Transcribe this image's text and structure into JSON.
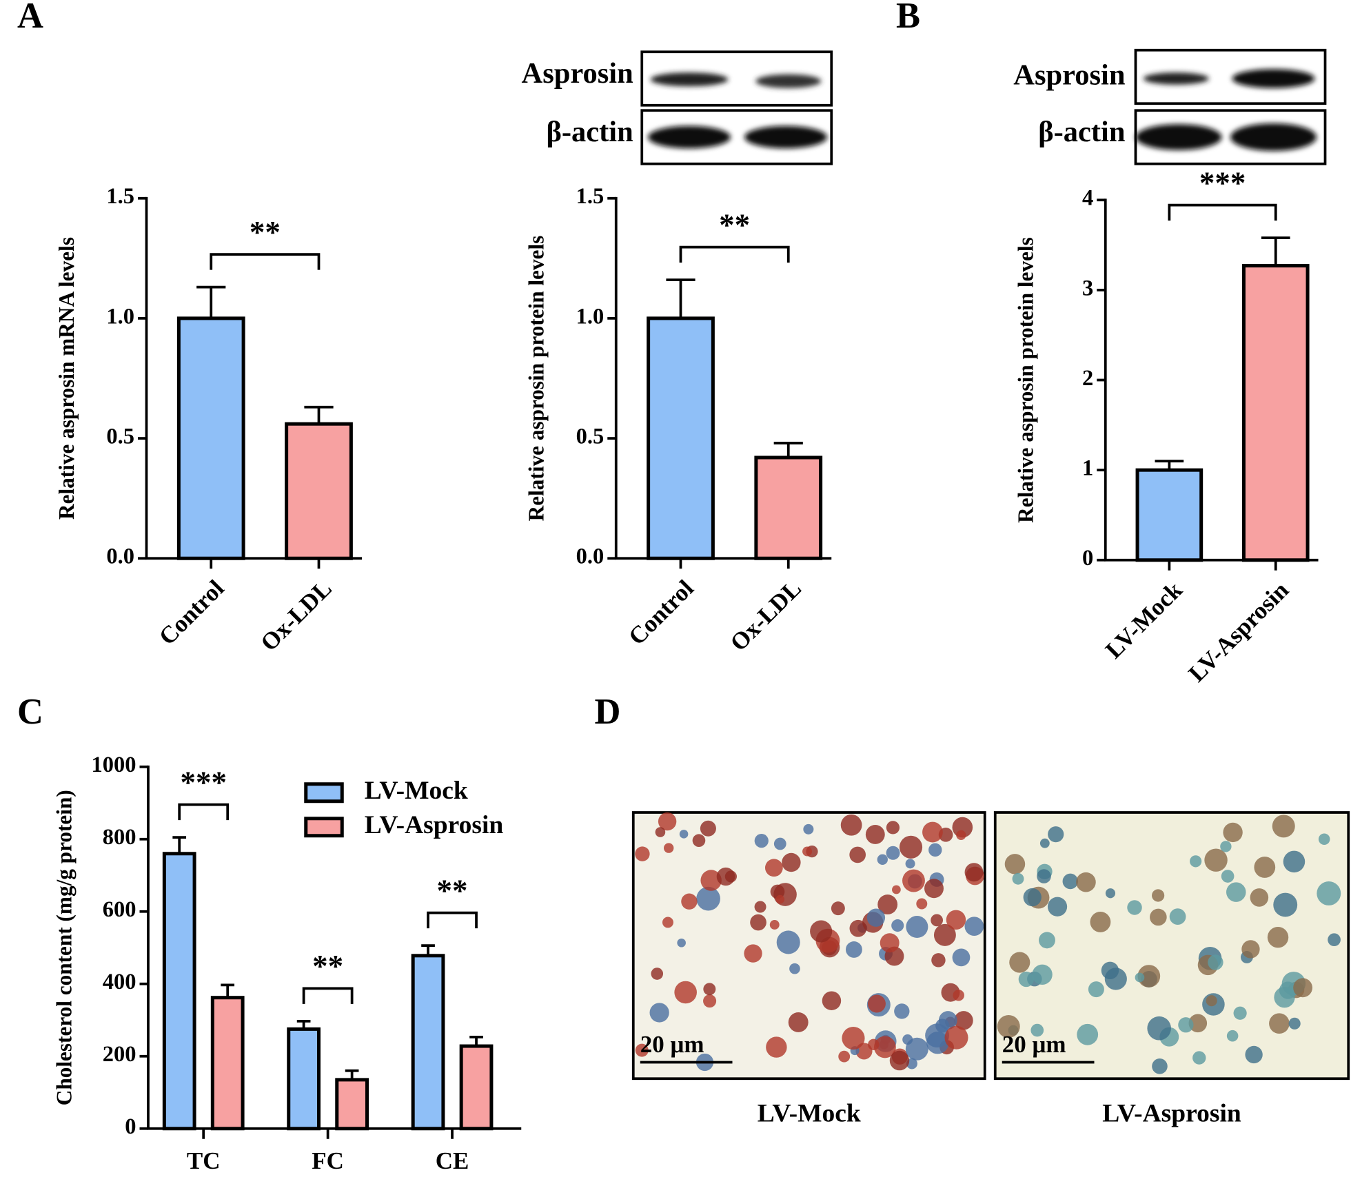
{
  "figure": {
    "panel_labels": [
      "A",
      "B",
      "C",
      "D"
    ],
    "blots": [
      {
        "rows": [
          "Asprosin",
          "β-actin"
        ]
      },
      {
        "rows": [
          "Asprosin",
          "β-actin"
        ]
      }
    ],
    "micrographs": [
      {
        "label": "LV-Mock",
        "scale_bar": "20 μm"
      },
      {
        "label": "LV-Asprosin",
        "scale_bar": "20 μm"
      }
    ]
  },
  "chart_data": [
    {
      "type": "bar",
      "ylabel": "Relative asprosin mRNA levels",
      "categories": [
        "Control",
        "Ox-LDL"
      ],
      "values": [
        1.0,
        0.56
      ],
      "errors": [
        0.13,
        0.07
      ],
      "colors": [
        "#8fbff7",
        "#f7a1a1"
      ],
      "ylim": [
        0,
        1.5
      ],
      "yticks": [
        {
          "value": 0,
          "label": "0.0"
        },
        {
          "value": 0.5,
          "label": "0.5"
        },
        {
          "value": 1,
          "label": "1.0"
        },
        {
          "value": 1.5,
          "label": "1.5"
        }
      ],
      "significance": "**"
    },
    {
      "type": "bar",
      "ylabel": "Relative asprosin protein levels",
      "categories": [
        "Control",
        "Ox-LDL"
      ],
      "values": [
        1.0,
        0.42
      ],
      "errors": [
        0.16,
        0.06
      ],
      "colors": [
        "#8fbff7",
        "#f7a1a1"
      ],
      "ylim": [
        0,
        1.5
      ],
      "yticks": [
        {
          "value": 0,
          "label": "0.0"
        },
        {
          "value": 0.5,
          "label": "0.5"
        },
        {
          "value": 1,
          "label": "1.0"
        },
        {
          "value": 1.5,
          "label": "1.5"
        }
      ],
      "significance": "**"
    },
    {
      "type": "bar",
      "ylabel": "Relative asprosin protein levels",
      "categories": [
        "LV-Mock",
        "LV-Asprosin"
      ],
      "values": [
        1.0,
        3.27
      ],
      "errors": [
        0.1,
        0.31
      ],
      "colors": [
        "#8fbff7",
        "#f7a1a1"
      ],
      "ylim": [
        0,
        4
      ],
      "yticks": [
        0,
        1,
        2,
        3,
        4
      ],
      "significance": "***"
    },
    {
      "type": "grouped-bar",
      "ylabel": "Cholesterol content (mg/g protein)",
      "categories": [
        "TC",
        "FC",
        "CE"
      ],
      "series": [
        {
          "name": "LV-Mock",
          "color": "#8fbff7",
          "values": [
            760,
            275,
            478
          ],
          "errors": [
            45,
            22,
            28
          ]
        },
        {
          "name": "LV-Asprosin",
          "color": "#f7a1a1",
          "values": [
            362,
            135,
            228
          ],
          "errors": [
            35,
            25,
            25
          ]
        }
      ],
      "ylim": [
        0,
        1000
      ],
      "yticks": [
        0,
        200,
        400,
        600,
        800,
        1000
      ],
      "legend": "upper right",
      "significance": [
        "***",
        "**",
        "**"
      ]
    }
  ]
}
